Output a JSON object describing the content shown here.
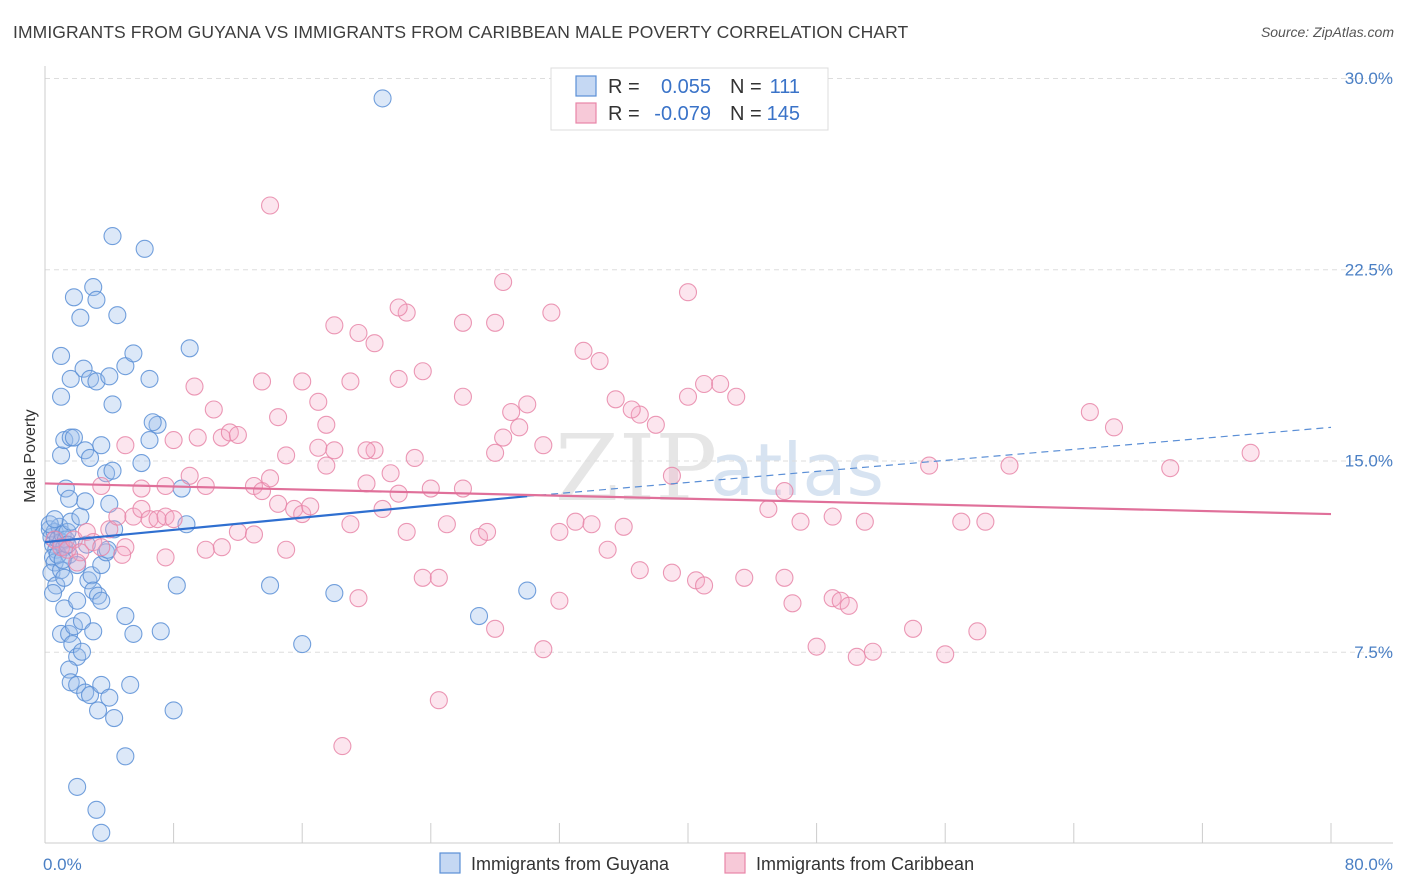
{
  "title": "IMMIGRANTS FROM GUYANA VS IMMIGRANTS FROM CARIBBEAN MALE POVERTY CORRELATION CHART",
  "source": "Source: ZipAtlas.com",
  "watermark": {
    "zip": "ZIP",
    "atlas": "atlas"
  },
  "legend": {
    "r_label": "R =",
    "n_label": "N =",
    "rows": [
      {
        "r": "0.055",
        "n": "111",
        "color": "#5b8fd6"
      },
      {
        "r": "-0.079",
        "n": "145",
        "color": "#e886a8"
      }
    ]
  },
  "chart_data": {
    "type": "scatter",
    "title": "IMMIGRANTS FROM GUYANA VS IMMIGRANTS FROM CARIBBEAN MALE POVERTY CORRELATION CHART",
    "xlabel": "",
    "ylabel": "Male Poverty",
    "xlim": [
      0,
      80
    ],
    "ylim": [
      0,
      30
    ],
    "x_tick_labels": [
      "0.0%",
      "80.0%"
    ],
    "y_ticks": [
      7.5,
      15.0,
      22.5,
      30.0
    ],
    "y_tick_labels": [
      "7.5%",
      "15.0%",
      "22.5%",
      "30.0%"
    ],
    "grid": "horizontal dashed",
    "legend_position": "top-center",
    "series": [
      {
        "name": "Immigrants from Guyana",
        "color": "#5b8fd6",
        "trend": {
          "x0": 0,
          "y0": 11.8,
          "x1": 30,
          "y1": 13.6,
          "dashed_to_x": 80,
          "dashed_to_y": 16.3
        },
        "points": [
          [
            0.3,
            12.3
          ],
          [
            0.4,
            12.0
          ],
          [
            0.5,
            11.7
          ],
          [
            0.6,
            12.2
          ],
          [
            0.7,
            11.5
          ],
          [
            0.5,
            11.2
          ],
          [
            0.8,
            11.9
          ],
          [
            0.9,
            12.4
          ],
          [
            1.0,
            11.8
          ],
          [
            1.1,
            12.1
          ],
          [
            1.2,
            11.6
          ],
          [
            1.3,
            11.9
          ],
          [
            0.6,
            11.0
          ],
          [
            0.4,
            10.6
          ],
          [
            0.7,
            10.1
          ],
          [
            0.5,
            9.8
          ],
          [
            1.0,
            10.7
          ],
          [
            1.2,
            10.4
          ],
          [
            1.4,
            12.2
          ],
          [
            1.5,
            11.3
          ],
          [
            1.6,
            12.6
          ],
          [
            2.0,
            10.9
          ],
          [
            2.2,
            12.8
          ],
          [
            2.5,
            13.4
          ],
          [
            2.7,
            10.3
          ],
          [
            2.9,
            10.5
          ],
          [
            3.0,
            9.9
          ],
          [
            3.3,
            9.7
          ],
          [
            3.5,
            10.9
          ],
          [
            3.8,
            11.4
          ],
          [
            4.0,
            13.3
          ],
          [
            4.3,
            12.3
          ],
          [
            1.3,
            13.9
          ],
          [
            1.5,
            13.5
          ],
          [
            1.0,
            15.2
          ],
          [
            1.2,
            15.8
          ],
          [
            1.6,
            15.9
          ],
          [
            1.8,
            15.9
          ],
          [
            2.5,
            15.4
          ],
          [
            2.8,
            15.1
          ],
          [
            3.5,
            15.6
          ],
          [
            3.8,
            14.5
          ],
          [
            4.2,
            14.6
          ],
          [
            6.0,
            14.9
          ],
          [
            7.0,
            16.4
          ],
          [
            6.5,
            15.8
          ],
          [
            8.5,
            13.9
          ],
          [
            8.8,
            12.5
          ],
          [
            1.0,
            17.5
          ],
          [
            1.6,
            18.2
          ],
          [
            2.4,
            18.6
          ],
          [
            2.8,
            18.2
          ],
          [
            3.2,
            18.1
          ],
          [
            4.0,
            18.3
          ],
          [
            5.0,
            18.7
          ],
          [
            5.5,
            19.2
          ],
          [
            6.5,
            18.2
          ],
          [
            9.0,
            19.4
          ],
          [
            1.0,
            19.1
          ],
          [
            1.8,
            21.4
          ],
          [
            2.2,
            20.6
          ],
          [
            3.0,
            21.8
          ],
          [
            3.2,
            21.3
          ],
          [
            4.5,
            20.7
          ],
          [
            4.2,
            17.2
          ],
          [
            6.7,
            16.5
          ],
          [
            4.2,
            23.8
          ],
          [
            6.2,
            23.3
          ],
          [
            21.0,
            29.2
          ],
          [
            1.2,
            9.2
          ],
          [
            2.0,
            9.5
          ],
          [
            3.5,
            9.5
          ],
          [
            5.0,
            8.9
          ],
          [
            5.5,
            8.2
          ],
          [
            7.2,
            8.3
          ],
          [
            8.2,
            10.1
          ],
          [
            1.0,
            8.2
          ],
          [
            1.5,
            8.2
          ],
          [
            1.8,
            8.5
          ],
          [
            2.3,
            8.7
          ],
          [
            3.0,
            8.3
          ],
          [
            1.7,
            7.8
          ],
          [
            2.0,
            7.3
          ],
          [
            2.3,
            7.5
          ],
          [
            1.5,
            6.8
          ],
          [
            1.6,
            6.3
          ],
          [
            2.0,
            6.2
          ],
          [
            2.5,
            5.9
          ],
          [
            2.8,
            5.8
          ],
          [
            3.5,
            6.2
          ],
          [
            4.0,
            5.7
          ],
          [
            5.3,
            6.2
          ],
          [
            3.3,
            5.2
          ],
          [
            4.3,
            4.9
          ],
          [
            8.0,
            5.2
          ],
          [
            5.0,
            3.4
          ],
          [
            2.0,
            2.2
          ],
          [
            3.2,
            1.3
          ],
          [
            3.5,
            0.4
          ],
          [
            14.0,
            10.1
          ],
          [
            16.0,
            7.8
          ],
          [
            18.0,
            9.8
          ],
          [
            27.0,
            8.9
          ],
          [
            30.0,
            9.9
          ],
          [
            0.3,
            12.5
          ],
          [
            0.8,
            11.3
          ],
          [
            1.1,
            11.1
          ],
          [
            0.6,
            12.7
          ],
          [
            1.4,
            11.7
          ],
          [
            2.6,
            11.7
          ],
          [
            3.9,
            11.5
          ]
        ]
      },
      {
        "name": "Immigrants from Caribbean",
        "color": "#e886a8",
        "trend": {
          "x0": 0,
          "y0": 14.1,
          "x1": 80,
          "y1": 12.9
        },
        "points": [
          [
            0.6,
            11.9
          ],
          [
            1.0,
            11.6
          ],
          [
            1.4,
            11.5
          ],
          [
            1.8,
            11.9
          ],
          [
            2.2,
            11.4
          ],
          [
            2.6,
            12.2
          ],
          [
            3.0,
            11.8
          ],
          [
            3.5,
            11.6
          ],
          [
            4.0,
            12.3
          ],
          [
            4.5,
            12.8
          ],
          [
            5.0,
            11.6
          ],
          [
            5.5,
            12.8
          ],
          [
            6.0,
            13.1
          ],
          [
            6.5,
            12.7
          ],
          [
            7.0,
            12.7
          ],
          [
            7.5,
            12.8
          ],
          [
            8.0,
            12.7
          ],
          [
            2.0,
            11.0
          ],
          [
            4.8,
            11.3
          ],
          [
            7.5,
            11.2
          ],
          [
            10.0,
            11.5
          ],
          [
            12.0,
            12.2
          ],
          [
            3.5,
            14.0
          ],
          [
            5.0,
            15.6
          ],
          [
            6.0,
            13.9
          ],
          [
            7.5,
            14.0
          ],
          [
            8.0,
            15.8
          ],
          [
            9.0,
            14.4
          ],
          [
            9.5,
            15.9
          ],
          [
            10.0,
            14.0
          ],
          [
            11.0,
            15.9
          ],
          [
            11.5,
            16.1
          ],
          [
            13.0,
            14.0
          ],
          [
            13.5,
            13.8
          ],
          [
            14.0,
            14.3
          ],
          [
            14.5,
            13.3
          ],
          [
            15.0,
            15.2
          ],
          [
            15.5,
            13.1
          ],
          [
            16.0,
            12.9
          ],
          [
            16.5,
            13.2
          ],
          [
            17.0,
            15.5
          ],
          [
            17.5,
            14.8
          ],
          [
            18.0,
            15.4
          ],
          [
            19.0,
            12.5
          ],
          [
            20.0,
            14.1
          ],
          [
            20.5,
            15.4
          ],
          [
            21.0,
            13.1
          ],
          [
            21.5,
            14.5
          ],
          [
            22.0,
            13.7
          ],
          [
            22.5,
            12.2
          ],
          [
            23.0,
            15.1
          ],
          [
            24.0,
            13.9
          ],
          [
            25.0,
            12.5
          ],
          [
            26.0,
            13.9
          ],
          [
            27.0,
            12.0
          ],
          [
            27.5,
            12.2
          ],
          [
            28.0,
            15.3
          ],
          [
            28.5,
            15.9
          ],
          [
            29.0,
            16.9
          ],
          [
            29.5,
            16.3
          ],
          [
            30.0,
            17.2
          ],
          [
            31.0,
            15.6
          ],
          [
            32.0,
            12.2
          ],
          [
            33.0,
            12.6
          ],
          [
            34.0,
            12.5
          ],
          [
            35.0,
            11.5
          ],
          [
            36.0,
            12.4
          ],
          [
            37.0,
            16.8
          ],
          [
            38.0,
            16.4
          ],
          [
            39.0,
            14.4
          ],
          [
            40.0,
            17.5
          ],
          [
            41.0,
            18.0
          ],
          [
            42.0,
            18.0
          ],
          [
            43.0,
            17.5
          ],
          [
            45.0,
            13.1
          ],
          [
            46.0,
            13.8
          ],
          [
            47.0,
            12.6
          ],
          [
            49.0,
            12.8
          ],
          [
            51.0,
            12.6
          ],
          [
            9.3,
            17.9
          ],
          [
            10.5,
            17.0
          ],
          [
            13.5,
            18.1
          ],
          [
            16.0,
            18.1
          ],
          [
            17.0,
            17.3
          ],
          [
            19.0,
            18.1
          ],
          [
            22.0,
            18.2
          ],
          [
            23.5,
            18.5
          ],
          [
            26.0,
            17.5
          ],
          [
            34.5,
            18.9
          ],
          [
            35.5,
            17.4
          ],
          [
            36.5,
            17.0
          ],
          [
            12.0,
            16.0
          ],
          [
            14.5,
            16.7
          ],
          [
            17.5,
            16.4
          ],
          [
            20.0,
            15.4
          ],
          [
            18.0,
            20.3
          ],
          [
            19.5,
            20.0
          ],
          [
            20.5,
            19.6
          ],
          [
            22.5,
            20.8
          ],
          [
            22.0,
            21.0
          ],
          [
            26.0,
            20.4
          ],
          [
            28.0,
            20.4
          ],
          [
            28.5,
            22.0
          ],
          [
            31.5,
            20.8
          ],
          [
            33.5,
            19.3
          ],
          [
            40.0,
            21.6
          ],
          [
            14.0,
            25.0
          ],
          [
            60.0,
            14.8
          ],
          [
            65.0,
            16.9
          ],
          [
            66.5,
            16.3
          ],
          [
            70.0,
            14.7
          ],
          [
            75.0,
            15.3
          ],
          [
            55.0,
            14.8
          ],
          [
            57.0,
            12.6
          ],
          [
            58.5,
            12.6
          ],
          [
            23.5,
            10.4
          ],
          [
            24.5,
            10.4
          ],
          [
            37.0,
            10.7
          ],
          [
            39.0,
            10.6
          ],
          [
            40.5,
            10.3
          ],
          [
            41.0,
            10.1
          ],
          [
            43.5,
            10.4
          ],
          [
            46.0,
            10.4
          ],
          [
            32.0,
            9.5
          ],
          [
            28.0,
            8.4
          ],
          [
            31.0,
            7.6
          ],
          [
            46.5,
            9.4
          ],
          [
            48.0,
            7.7
          ],
          [
            49.0,
            9.6
          ],
          [
            49.5,
            9.5
          ],
          [
            50.0,
            9.3
          ],
          [
            50.5,
            7.3
          ],
          [
            51.5,
            7.5
          ],
          [
            54.0,
            8.4
          ],
          [
            56.0,
            7.4
          ],
          [
            58.0,
            8.3
          ],
          [
            24.5,
            5.6
          ],
          [
            18.5,
            3.8
          ],
          [
            19.5,
            9.6
          ],
          [
            11.0,
            11.6
          ],
          [
            13.0,
            12.1
          ],
          [
            15.0,
            11.5
          ]
        ]
      }
    ]
  },
  "bottom_legend": [
    {
      "label": "Immigrants from Guyana",
      "color": "#5b8fd6"
    },
    {
      "label": "Immigrants from Caribbean",
      "color": "#e886a8"
    }
  ]
}
